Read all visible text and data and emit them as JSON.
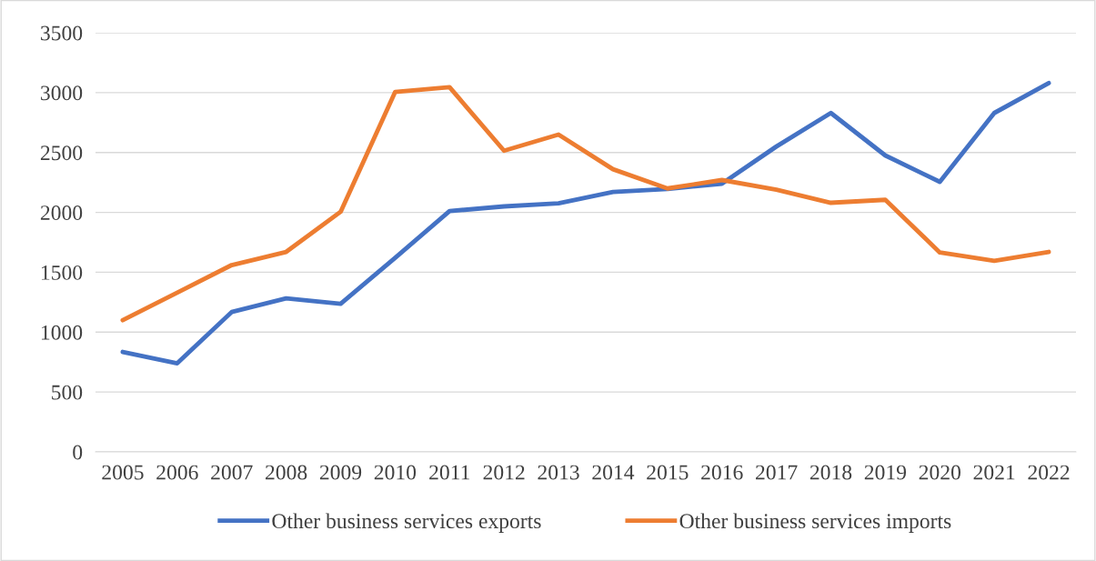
{
  "chart_data": {
    "type": "line",
    "categories": [
      "2005",
      "2006",
      "2007",
      "2008",
      "2009",
      "2010",
      "2011",
      "2012",
      "2013",
      "2014",
      "2015",
      "2016",
      "2017",
      "2018",
      "2019",
      "2020",
      "2021",
      "2022"
    ],
    "series": [
      {
        "name": "Other business services exports",
        "color": "#4472c4",
        "values": [
          835,
          740,
          1168,
          1282,
          1237,
          1620,
          2011,
          2050,
          2075,
          2170,
          2195,
          2240,
          2550,
          2830,
          2475,
          2255,
          2830,
          3080
        ]
      },
      {
        "name": "Other business services imports",
        "color": "#ed7d31",
        "values": [
          1100,
          1330,
          1560,
          1670,
          2005,
          3005,
          3045,
          2515,
          2650,
          2360,
          2200,
          2270,
          2190,
          2080,
          2105,
          1665,
          1595,
          1670
        ]
      }
    ],
    "ylim": [
      0,
      3500
    ],
    "yticks": [
      0,
      500,
      1000,
      1500,
      2000,
      2500,
      3000,
      3500
    ],
    "grid": "y",
    "legend": "bottom",
    "marker": "none",
    "line_style": "solid"
  }
}
